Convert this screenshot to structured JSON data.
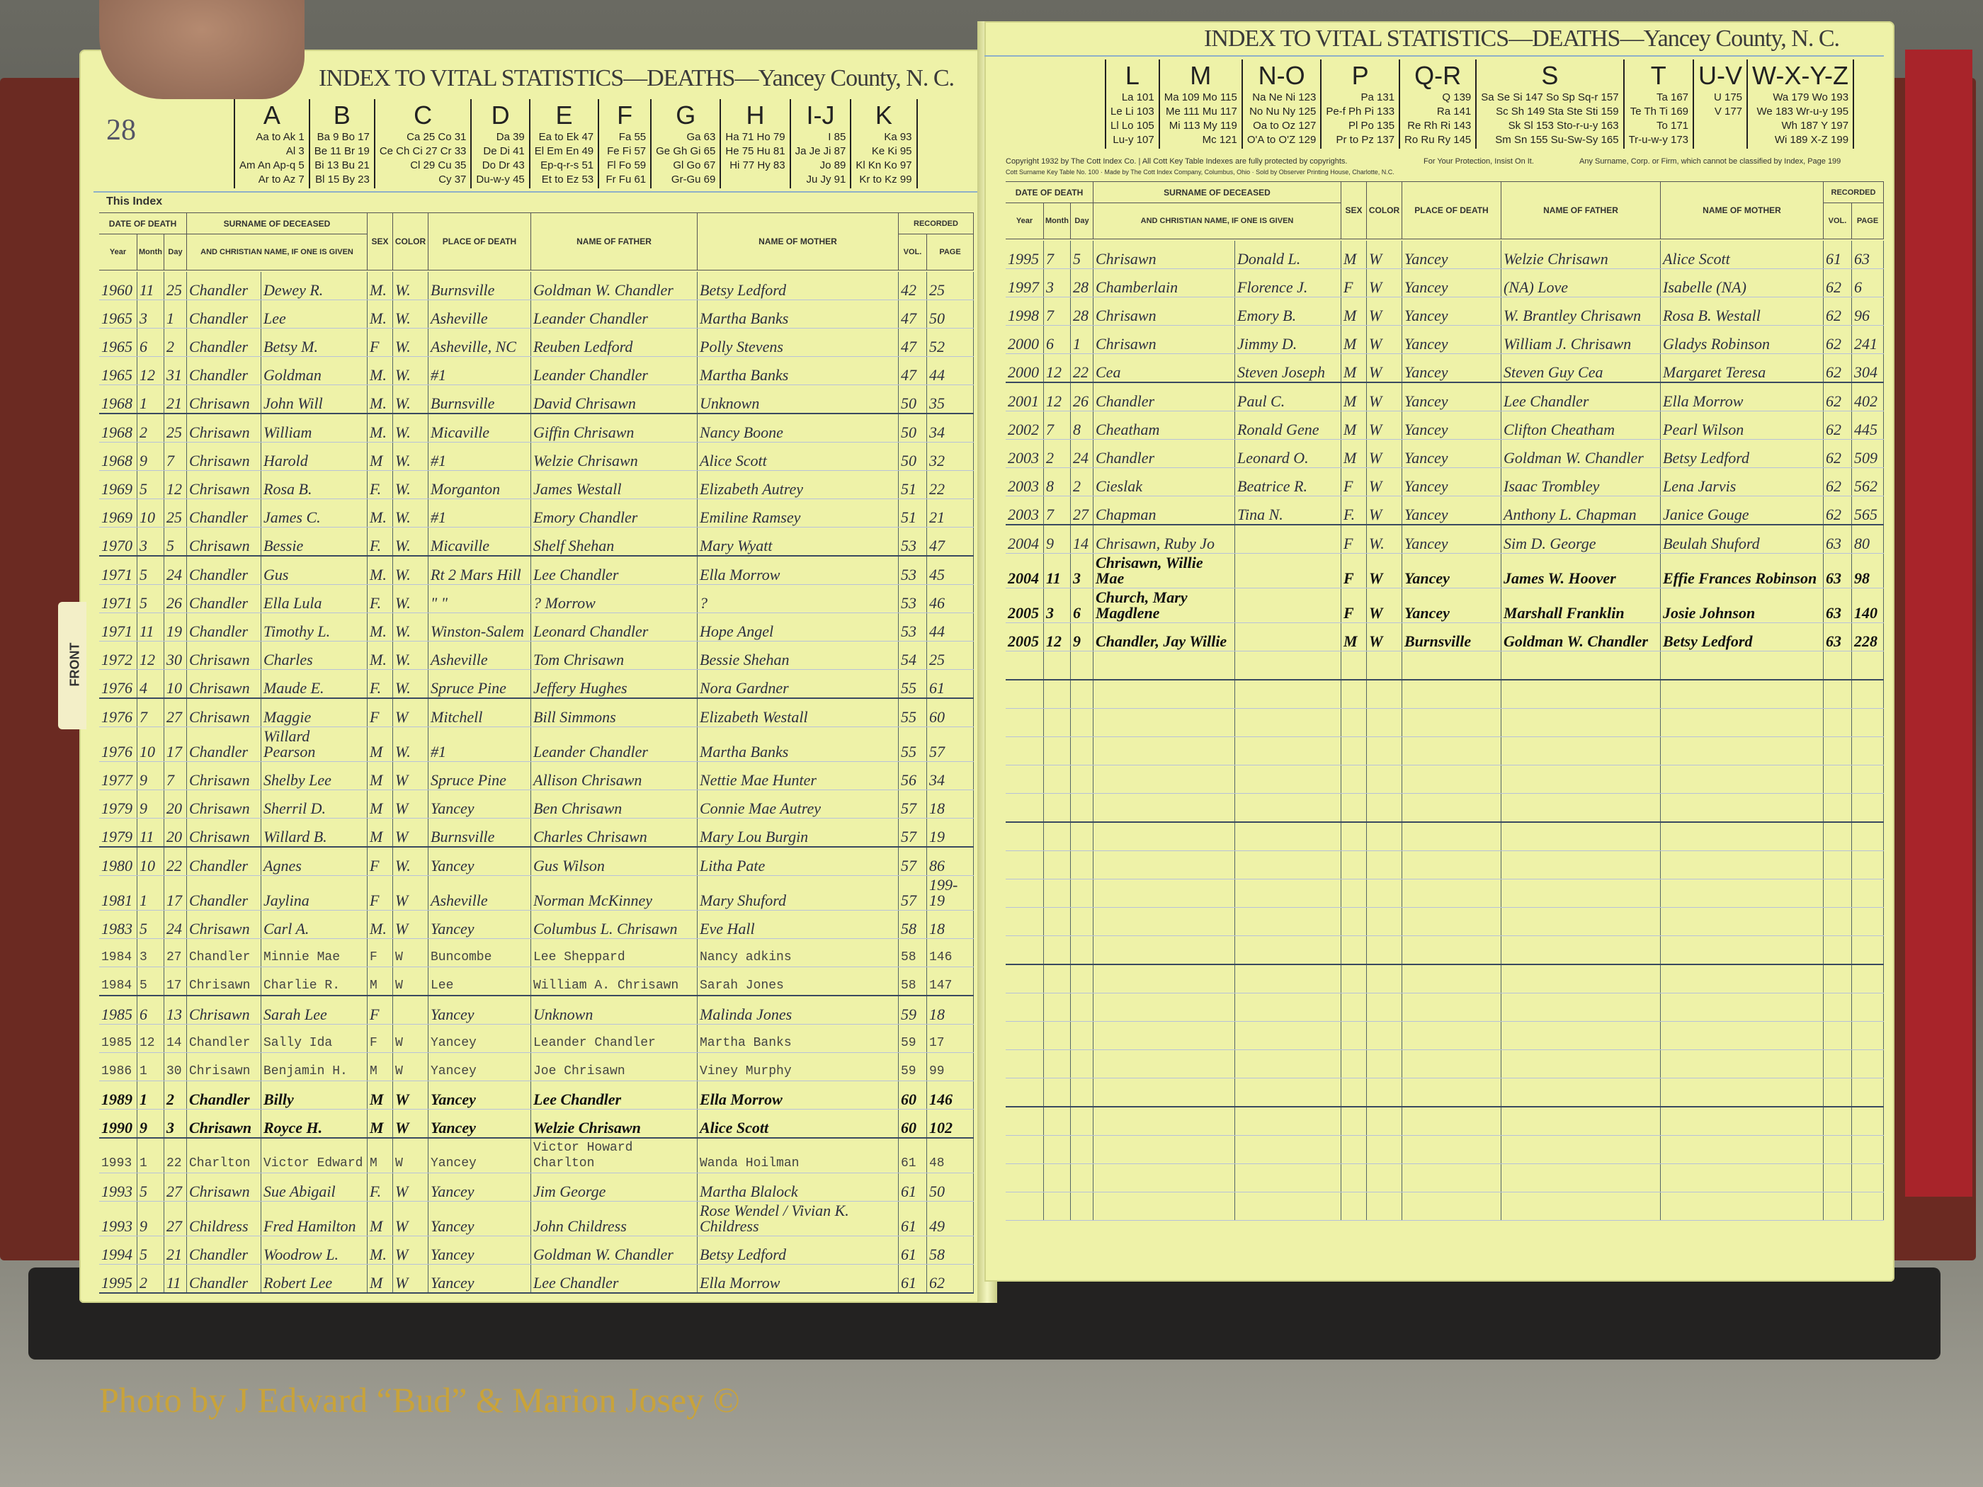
{
  "title": "INDEX TO VITAL STATISTICS—DEATHS—Yancey County, N. C.",
  "left_page": {
    "page_number": "28",
    "key": [
      {
        "letter": "A",
        "entries": [
          "Aa to Ak 1",
          "Al 3",
          "Am An Ap-q 5",
          "Ar to Az 7"
        ]
      },
      {
        "letter": "B",
        "entries": [
          "Ba 9 Bo 17",
          "Be 11 Br 19",
          "Bi 13 Bu 21",
          "Bl 15 By 23"
        ]
      },
      {
        "letter": "C",
        "entries": [
          "Ca 25 Co 31",
          "Ce Ch Ci 27 Cr 33",
          "Cl 29 Cu 35",
          "Cy 37"
        ]
      },
      {
        "letter": "D",
        "entries": [
          "Da 39",
          "De Di 41",
          "Do Dr 43",
          "Du-w-y 45"
        ]
      },
      {
        "letter": "E",
        "entries": [
          "Ea to Ek 47",
          "El Em En 49",
          "Ep-q-r-s 51",
          "Et to Ez 53"
        ]
      },
      {
        "letter": "F",
        "entries": [
          "Fa 55",
          "Fe Fi 57",
          "Fl Fo 59",
          "Fr Fu 61"
        ]
      },
      {
        "letter": "G",
        "entries": [
          "Ga 63",
          "Ge Gh Gi 65",
          "Gl Go 67",
          "Gr-Gu 69"
        ]
      },
      {
        "letter": "H",
        "entries": [
          "Ha 71 Ho 79",
          "He 75 Hu 81",
          "Hi 77 Hy 83"
        ]
      },
      {
        "letter": "I-J",
        "entries": [
          "I 85",
          "Ja Je Ji 87",
          "Jo 89",
          "Ju Jy 91"
        ]
      },
      {
        "letter": "K",
        "entries": [
          "Ka 93",
          "Ke Ki 95",
          "Kl Kn Ko 97",
          "Kr to Kz 99"
        ]
      }
    ],
    "this_index": "This Index",
    "tab_label": "FRONT",
    "rows": [
      [
        "1960",
        "11",
        "25",
        "Chandler",
        "Dewey R.",
        "M.",
        "W.",
        "Burnsville",
        "Goldman W. Chandler",
        "Betsy Ledford",
        "42",
        "25"
      ],
      [
        "1965",
        "3",
        "1",
        "Chandler",
        "Lee",
        "M.",
        "W.",
        "Asheville",
        "Leander Chandler",
        "Martha Banks",
        "47",
        "50"
      ],
      [
        "1965",
        "6",
        "2",
        "Chandler",
        "Betsy M.",
        "F",
        "W.",
        "Asheville, NC",
        "Reuben Ledford",
        "Polly Stevens",
        "47",
        "52"
      ],
      [
        "1965",
        "12",
        "31",
        "Chandler",
        "Goldman",
        "M.",
        "W.",
        "#1",
        "Leander Chandler",
        "Martha Banks",
        "47",
        "44"
      ],
      [
        "1968",
        "1",
        "21",
        "Chrisawn",
        "John Will",
        "M.",
        "W.",
        "Burnsville",
        "David Chrisawn",
        "Unknown",
        "50",
        "35"
      ],
      [
        "1968",
        "2",
        "25",
        "Chrisawn",
        "William",
        "M.",
        "W.",
        "Micaville",
        "Giffin Chrisawn",
        "Nancy Boone",
        "50",
        "34"
      ],
      [
        "1968",
        "9",
        "7",
        "Chrisawn",
        "Harold",
        "M",
        "W.",
        "#1",
        "Welzie Chrisawn",
        "Alice Scott",
        "50",
        "32"
      ],
      [
        "1969",
        "5",
        "12",
        "Chrisawn",
        "Rosa B.",
        "F.",
        "W.",
        "Morganton",
        "James Westall",
        "Elizabeth Autrey",
        "51",
        "22"
      ],
      [
        "1969",
        "10",
        "25",
        "Chandler",
        "James C.",
        "M.",
        "W.",
        "#1",
        "Emory Chandler",
        "Emiline Ramsey",
        "51",
        "21"
      ],
      [
        "1970",
        "3",
        "5",
        "Chrisawn",
        "Bessie",
        "F.",
        "W.",
        "Micaville",
        "Shelf Shehan",
        "Mary Wyatt",
        "53",
        "47"
      ],
      [
        "1971",
        "5",
        "24",
        "Chandler",
        "Gus",
        "M.",
        "W.",
        "Rt 2 Mars Hill",
        "Lee Chandler",
        "Ella Morrow",
        "53",
        "45"
      ],
      [
        "1971",
        "5",
        "26",
        "Chandler",
        "Ella Lula",
        "F.",
        "W.",
        "\" \"",
        "? Morrow",
        "?",
        "53",
        "46"
      ],
      [
        "1971",
        "11",
        "19",
        "Chandler",
        "Timothy L.",
        "M.",
        "W.",
        "Winston-Salem",
        "Leonard Chandler",
        "Hope Angel",
        "53",
        "44"
      ],
      [
        "1972",
        "12",
        "30",
        "Chrisawn",
        "Charles",
        "M.",
        "W.",
        "Asheville",
        "Tom Chrisawn",
        "Bessie Shehan",
        "54",
        "25"
      ],
      [
        "1976",
        "4",
        "10",
        "Chrisawn",
        "Maude E.",
        "F.",
        "W.",
        "Spruce Pine",
        "Jeffery Hughes",
        "Nora Gardner",
        "55",
        "61"
      ],
      [
        "1976",
        "7",
        "27",
        "Chrisawn",
        "Maggie",
        "F",
        "W",
        "Mitchell",
        "Bill Simmons",
        "Elizabeth Westall",
        "55",
        "60"
      ],
      [
        "1976",
        "10",
        "17",
        "Chandler",
        "Willard Pearson",
        "M",
        "W.",
        "#1",
        "Leander Chandler",
        "Martha Banks",
        "55",
        "57"
      ],
      [
        "1977",
        "9",
        "7",
        "Chrisawn",
        "Shelby Lee",
        "M",
        "W",
        "Spruce Pine",
        "Allison Chrisawn",
        "Nettie Mae Hunter",
        "56",
        "34"
      ],
      [
        "1979",
        "9",
        "20",
        "Chrisawn",
        "Sherril D.",
        "M",
        "W",
        "Yancey",
        "Ben Chrisawn",
        "Connie Mae Autrey",
        "57",
        "18"
      ],
      [
        "1979",
        "11",
        "20",
        "Chrisawn",
        "Willard B.",
        "M",
        "W",
        "Burnsville",
        "Charles Chrisawn",
        "Mary Lou Burgin",
        "57",
        "19"
      ],
      [
        "1980",
        "10",
        "22",
        "Chandler",
        "Agnes",
        "F",
        "W.",
        "Yancey",
        "Gus Wilson",
        "Litha Pate",
        "57",
        "86"
      ],
      [
        "1981",
        "1",
        "17",
        "Chandler",
        "Jaylina",
        "F",
        "W",
        "Asheville",
        "Norman McKinney",
        "Mary Shuford",
        "57",
        "199-19"
      ],
      [
        "1983",
        "5",
        "24",
        "Chrisawn",
        "Carl A.",
        "M.",
        "W",
        "Yancey",
        "Columbus L. Chrisawn",
        "Eve Hall",
        "58",
        "18"
      ],
      [
        "1984",
        "3",
        "27",
        "Chandler",
        "Minnie Mae",
        "F",
        "W",
        "Buncombe",
        "Lee Sheppard",
        "Nancy adkins",
        "58",
        "146"
      ],
      [
        "1984",
        "5",
        "17",
        "Chrisawn",
        "Charlie R.",
        "M",
        "W",
        "Lee",
        "William A. Chrisawn",
        "Sarah Jones",
        "58",
        "147"
      ],
      [
        "1985",
        "6",
        "13",
        "Chrisawn",
        "Sarah Lee",
        "F",
        "",
        "Yancey",
        "Unknown",
        "Malinda Jones",
        "59",
        "18"
      ],
      [
        "1985",
        "12",
        "14",
        "Chandler",
        "Sally Ida",
        "F",
        "W",
        "Yancey",
        "Leander Chandler",
        "Martha Banks",
        "59",
        "17"
      ],
      [
        "1986",
        "1",
        "30",
        "Chrisawn",
        "Benjamin H.",
        "M",
        "W",
        "Yancey",
        "Joe Chrisawn",
        "Viney Murphy",
        "59",
        "99"
      ],
      [
        "1989",
        "1",
        "2",
        "Chandler",
        "Billy",
        "M",
        "W",
        "Yancey",
        "Lee Chandler",
        "Ella Morrow",
        "60",
        "146"
      ],
      [
        "1990",
        "9",
        "3",
        "Chrisawn",
        "Royce H.",
        "M",
        "W",
        "Yancey",
        "Welzie Chrisawn",
        "Alice Scott",
        "60",
        "102"
      ],
      [
        "1993",
        "1",
        "22",
        "Charlton",
        "Victor Edward",
        "M",
        "W",
        "Yancey",
        "Victor Howard Charlton",
        "Wanda Hoilman",
        "61",
        "48"
      ],
      [
        "1993",
        "5",
        "27",
        "Chrisawn",
        "Sue Abigail",
        "F.",
        "W",
        "Yancey",
        "Jim George",
        "Martha Blalock",
        "61",
        "50"
      ],
      [
        "1993",
        "9",
        "27",
        "Childress",
        "Fred Hamilton",
        "M",
        "W",
        "Yancey",
        "John Childress",
        "Rose Wendel / Vivian K. Childress",
        "61",
        "49"
      ],
      [
        "1994",
        "5",
        "21",
        "Chandler",
        "Woodrow L.",
        "M.",
        "W",
        "Yancey",
        "Goldman W. Chandler",
        "Betsy Ledford",
        "61",
        "58"
      ],
      [
        "1995",
        "2",
        "11",
        "Chandler",
        "Robert Lee",
        "M",
        "W",
        "Yancey",
        "Lee Chandler",
        "Ella Morrow",
        "61",
        "62"
      ]
    ],
    "typed_rows": [
      23,
      24,
      26,
      27,
      30
    ],
    "ink_rows": [
      28,
      29
    ]
  },
  "right_page": {
    "key": [
      {
        "letter": "L",
        "entries": [
          "La 101",
          "Le Li 103",
          "Ll Lo 105",
          "Lu-y 107"
        ]
      },
      {
        "letter": "M",
        "entries": [
          "Ma 109 Mo 115",
          "Me 111 Mu 117",
          "Mi 113 My 119",
          "Mc 121"
        ]
      },
      {
        "letter": "N-O",
        "entries": [
          "Na Ne Ni 123",
          "No Nu Ny 125",
          "Oa to Oz 127",
          "O'A to O'Z 129"
        ]
      },
      {
        "letter": "P",
        "entries": [
          "Pa 131",
          "Pe-f Ph Pi 133",
          "Pl Po 135",
          "Pr to Pz 137"
        ]
      },
      {
        "letter": "Q-R",
        "entries": [
          "Q 139",
          "Ra 141",
          "Re Rh Ri 143",
          "Ro Ru Ry 145"
        ]
      },
      {
        "letter": "S",
        "entries": [
          "Sa Se Si 147 So Sp Sq-r 157",
          "Sc Sh 149 Sta Ste Sti 159",
          "Sk Sl 153 Sto-r-u-y 163",
          "Sm Sn 155 Su-Sw-Sy 165"
        ]
      },
      {
        "letter": "T",
        "entries": [
          "Ta 167",
          "Te Th Ti 169",
          "To 171",
          "Tr-u-w-y 173"
        ]
      },
      {
        "letter": "U-V",
        "entries": [
          "U 175",
          "V 177"
        ]
      },
      {
        "letter": "W-X-Y-Z",
        "entries": [
          "Wa 179 Wo 193",
          "We 183 Wr-u-y 195",
          "Wh 187 Y 197",
          "Wi 189 X-Z 199"
        ]
      }
    ],
    "fine_print": {
      "copyright": "Copyright 1932 by The Cott Index Co. | All Cott Key Table Indexes are fully protected by copyrights.",
      "protection": "For Your Protection, Insist On It.",
      "unclassified": "Any Surname, Corp. or Firm, which cannot be classified by Index, Page 199",
      "maker": "Cott Surname Key Table No. 100 · Made by The Cott Index Company, Columbus, Ohio · Sold by Observer Printing House, Charlotte, N.C."
    },
    "rows": [
      [
        "1995",
        "7",
        "5",
        "Chrisawn",
        "Donald L.",
        "M",
        "W",
        "Yancey",
        "Welzie Chrisawn",
        "Alice Scott",
        "61",
        "63"
      ],
      [
        "1997",
        "3",
        "28",
        "Chamberlain",
        "Florence J.",
        "F",
        "W",
        "Yancey",
        "(NA) Love",
        "Isabelle (NA)",
        "62",
        "6"
      ],
      [
        "1998",
        "7",
        "28",
        "Chrisawn",
        "Emory B.",
        "M",
        "W",
        "Yancey",
        "W. Brantley Chrisawn",
        "Rosa B. Westall",
        "62",
        "96"
      ],
      [
        "2000",
        "6",
        "1",
        "Chrisawn",
        "Jimmy D.",
        "M",
        "W",
        "Yancey",
        "William J. Chrisawn",
        "Gladys Robinson",
        "62",
        "241"
      ],
      [
        "2000",
        "12",
        "22",
        "Cea",
        "Steven Joseph",
        "M",
        "W",
        "Yancey",
        "Steven Guy Cea",
        "Margaret Teresa",
        "62",
        "304"
      ],
      [
        "2001",
        "12",
        "26",
        "Chandler",
        "Paul C.",
        "M",
        "W",
        "Yancey",
        "Lee Chandler",
        "Ella Morrow",
        "62",
        "402"
      ],
      [
        "2002",
        "7",
        "8",
        "Cheatham",
        "Ronald Gene",
        "M",
        "W",
        "Yancey",
        "Clifton Cheatham",
        "Pearl Wilson",
        "62",
        "445"
      ],
      [
        "2003",
        "2",
        "24",
        "Chandler",
        "Leonard O.",
        "M",
        "W",
        "Yancey",
        "Goldman W. Chandler",
        "Betsy Ledford",
        "62",
        "509"
      ],
      [
        "2003",
        "8",
        "2",
        "Cieslak",
        "Beatrice R.",
        "F",
        "W",
        "Yancey",
        "Isaac Trombley",
        "Lena Jarvis",
        "62",
        "562"
      ],
      [
        "2003",
        "7",
        "27",
        "Chapman",
        "Tina N.",
        "F.",
        "W",
        "Yancey",
        "Anthony L. Chapman",
        "Janice Gouge",
        "62",
        "565"
      ],
      [
        "2004",
        "9",
        "14",
        "Chrisawn, Ruby Jo",
        "",
        "F",
        "W.",
        "Yancey",
        "Sim D. George",
        "Beulah Shuford",
        "63",
        "80"
      ],
      [
        "2004",
        "11",
        "3",
        "Chrisawn, Willie Mae",
        "",
        "F",
        "W",
        "Yancey",
        "James W. Hoover",
        "Effie Frances Robinson",
        "63",
        "98"
      ],
      [
        "2005",
        "3",
        "6",
        "Church, Mary Magdlene",
        "",
        "F",
        "W",
        "Yancey",
        "Marshall Franklin",
        "Josie Johnson",
        "63",
        "140"
      ],
      [
        "2005",
        "12",
        "9",
        "Chandler, Jay Willie",
        "",
        "M",
        "W",
        "Burnsville",
        "Goldman W. Chandler",
        "Betsy Ledford",
        "63",
        "228"
      ]
    ],
    "ink_rows": [
      11,
      12,
      13
    ]
  },
  "headers": {
    "date_of_death": "DATE OF DEATH",
    "year": "Year",
    "month": "Month",
    "day": "Day",
    "surname": "SURNAME OF DECEASED",
    "surname_sub": "AND CHRISTIAN NAME, IF ONE IS GIVEN",
    "sex": "SEX",
    "color": "COLOR",
    "place": "PLACE OF DEATH",
    "father": "NAME OF FATHER",
    "mother": "NAME OF MOTHER",
    "recorded": "RECORDED",
    "vol": "VOL.",
    "page": "PAGE"
  },
  "watermark": "Photo by J Edward “Bud” & Marion Josey ©",
  "colors": {
    "paper": "#eef2a8",
    "ink": "#2d3040",
    "cover": "#6b2a22",
    "watermark": "#c9a33a"
  }
}
